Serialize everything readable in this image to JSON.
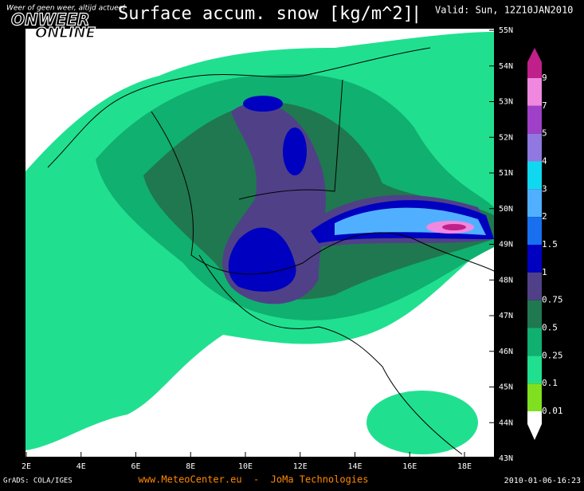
{
  "header": {
    "title": "Surface accum. snow [kg/m^2]",
    "valid": "Valid: Sun, 12Z10JAN2010"
  },
  "logo": {
    "tagline": "Weer of geen weer, altijd actueel",
    "line1": "ONWEER",
    "line2": "ONLINE"
  },
  "map": {
    "lat_labels": [
      "55N",
      "54N",
      "53N",
      "52N",
      "51N",
      "50N",
      "49N",
      "48N",
      "47N",
      "46N",
      "45N",
      "44N",
      "43N"
    ],
    "lon_labels": [
      "2E",
      "4E",
      "6E",
      "8E",
      "10E",
      "12E",
      "14E",
      "16E",
      "18E"
    ]
  },
  "legend": {
    "levels": [
      9,
      7,
      5,
      4,
      3,
      2,
      1.5,
      1,
      0.75,
      0.5,
      0.25,
      0.1,
      0.01
    ],
    "colors": [
      "#c0208a",
      "#f088e0",
      "#a040c8",
      "#9078e0",
      "#10d8f0",
      "#50b0ff",
      "#1870f0",
      "#0000c0",
      "#504088",
      "#207850",
      "#10b070",
      "#20e090",
      "#80e020",
      "#ffffff"
    ]
  },
  "footer": {
    "source": "GrADS: COLA/IGES",
    "site": "www.MeteoCenter.eu  -  JoMa Technologies",
    "date": "2010-01-06-16:23"
  }
}
